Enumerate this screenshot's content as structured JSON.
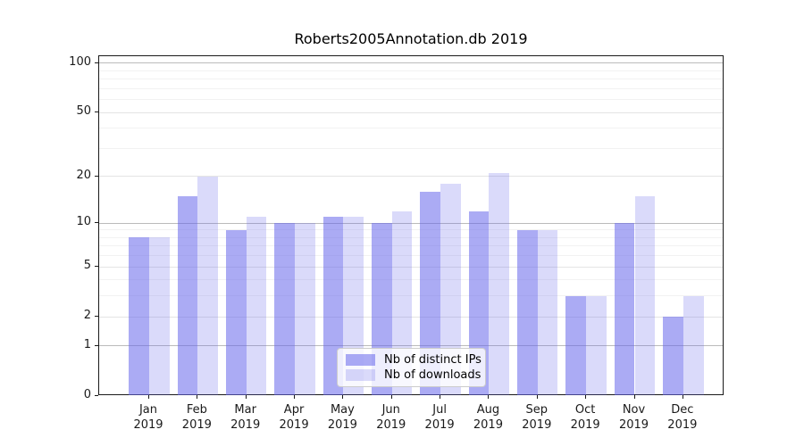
{
  "title": "Roberts2005Annotation.db 2019",
  "chart_data": {
    "type": "bar",
    "title": "Roberts2005Annotation.db 2019",
    "categories": [
      "Jan",
      "Feb",
      "Mar",
      "Apr",
      "May",
      "Jun",
      "Jul",
      "Aug",
      "Sep",
      "Oct",
      "Nov",
      "Dec"
    ],
    "x_year": "2019",
    "series": [
      {
        "name": "Nb of distinct IPs",
        "color": "#6666EB",
        "alpha": 0.55,
        "values": [
          8,
          15,
          9,
          10,
          11,
          10,
          16,
          12,
          9,
          3,
          10,
          2
        ]
      },
      {
        "name": "Nb of downloads",
        "color": "#6666EB",
        "alpha": 0.24,
        "values": [
          8,
          20,
          11,
          10,
          11,
          12,
          18,
          21,
          9,
          3,
          15,
          3
        ]
      }
    ],
    "yscale": "log1p",
    "ylim": [
      0,
      111
    ],
    "y_ticks": [
      0,
      1,
      2,
      5,
      10,
      20,
      50,
      100
    ],
    "major_gridlines": [
      1,
      10,
      100
    ],
    "labeled_minor_gridlines": [
      2,
      5,
      20,
      50
    ],
    "minor_gridlines": [
      3,
      4,
      6,
      7,
      8,
      9,
      30,
      40,
      60,
      70,
      80,
      90
    ],
    "grid": true,
    "legend_position": "lower center"
  },
  "colors": {
    "bar_ips_flat": "#ABABF4",
    "bar_downloads_flat": "#DADAFA",
    "major_grid": "#bbbbbb",
    "labeled_grid": "#e4e4e4",
    "minor_grid": "#f2f2f2",
    "axis": "#1a1a1a",
    "legend_border": "#cccccc"
  }
}
